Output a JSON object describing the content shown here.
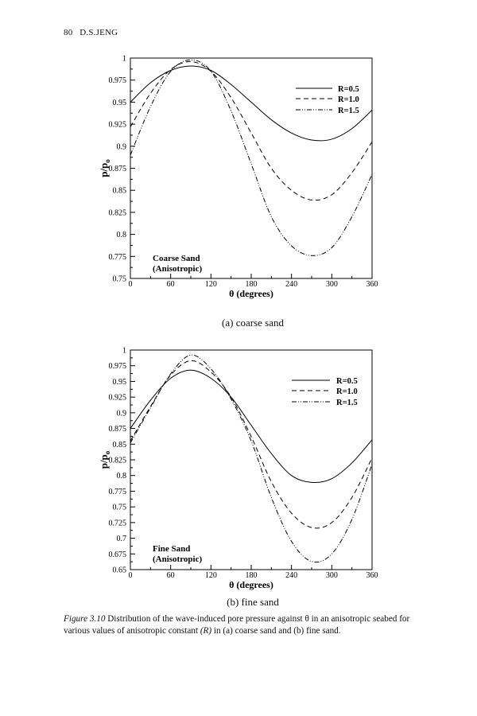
{
  "header": {
    "page_number": "80",
    "author": "D.S.JENG"
  },
  "chart_data": [
    {
      "type": "line",
      "subcaption": "(a) coarse sand",
      "annotation": [
        "Coarse Sand",
        "(Anisotropic)"
      ],
      "xlabel": "θ (degrees)",
      "ylabel": "p/p",
      "ylabel_sub": "o",
      "xlim": [
        0,
        360
      ],
      "ylim": [
        0.75,
        1
      ],
      "xticks": [
        0,
        60,
        120,
        180,
        240,
        300,
        360
      ],
      "xtick_labels": [
        "0",
        "60",
        "120",
        "180",
        "240",
        "300",
        "360"
      ],
      "yticks": [
        0.75,
        0.775,
        0.8,
        0.825,
        0.85,
        0.875,
        0.9,
        0.925,
        0.95,
        0.975,
        1
      ],
      "ytick_labels": [
        "0.75",
        "0.775",
        "0.8",
        "0.825",
        "0.85",
        "0.875",
        "0.9",
        "0.925",
        "0.95",
        "0.975",
        "1"
      ],
      "legend_position": "top-right",
      "x": [
        0,
        30,
        60,
        90,
        120,
        150,
        180,
        210,
        240,
        270,
        300,
        330,
        360
      ],
      "series": [
        {
          "name": "R=0.5",
          "style": "solid",
          "values": [
            0.95,
            0.972,
            0.986,
            0.991,
            0.986,
            0.97,
            0.95,
            0.93,
            0.915,
            0.907,
            0.908,
            0.92,
            0.941
          ]
        },
        {
          "name": "R=1.0",
          "style": "dashed",
          "values": [
            0.922,
            0.96,
            0.987,
            0.996,
            0.985,
            0.955,
            0.915,
            0.875,
            0.85,
            0.839,
            0.845,
            0.87,
            0.905
          ]
        },
        {
          "name": "R=1.5",
          "style": "dash-dot-dot",
          "values": [
            0.89,
            0.945,
            0.985,
            0.998,
            0.985,
            0.94,
            0.88,
            0.82,
            0.787,
            0.776,
            0.785,
            0.82,
            0.868
          ]
        }
      ]
    },
    {
      "type": "line",
      "subcaption": "(b) fine sand",
      "annotation": [
        "Fine Sand",
        "(Anisotropic)"
      ],
      "xlabel": "θ (degrees)",
      "ylabel": "p/p",
      "ylabel_sub": "o",
      "xlim": [
        0,
        360
      ],
      "ylim": [
        0.65,
        1
      ],
      "xticks": [
        0,
        60,
        120,
        180,
        240,
        300,
        360
      ],
      "xtick_labels": [
        "0",
        "60",
        "120",
        "180",
        "240",
        "300",
        "360"
      ],
      "yticks": [
        0.65,
        0.675,
        0.7,
        0.725,
        0.75,
        0.775,
        0.8,
        0.825,
        0.85,
        0.875,
        0.9,
        0.925,
        0.95,
        0.975,
        1
      ],
      "ytick_labels": [
        "0.65",
        "0.675",
        "0.7",
        "0.725",
        "0.75",
        "0.775",
        "0.8",
        "0.825",
        "0.85",
        "0.875",
        "0.9",
        "0.925",
        "0.95",
        "0.975",
        "1"
      ],
      "legend_position": "top-right",
      "x": [
        0,
        30,
        60,
        90,
        120,
        150,
        180,
        210,
        240,
        270,
        300,
        330,
        360
      ],
      "series": [
        {
          "name": "R=0.5",
          "style": "solid",
          "values": [
            0.875,
            0.92,
            0.955,
            0.968,
            0.955,
            0.925,
            0.88,
            0.835,
            0.8,
            0.789,
            0.795,
            0.82,
            0.857
          ]
        },
        {
          "name": "R=1.0",
          "style": "dashed",
          "values": [
            0.855,
            0.91,
            0.96,
            0.983,
            0.965,
            0.925,
            0.862,
            0.79,
            0.74,
            0.717,
            0.725,
            0.765,
            0.828
          ]
        },
        {
          "name": "R=1.5",
          "style": "dash-dot-dot",
          "values": [
            0.852,
            0.908,
            0.962,
            0.992,
            0.97,
            0.922,
            0.855,
            0.765,
            0.695,
            0.663,
            0.675,
            0.73,
            0.818
          ]
        }
      ]
    }
  ],
  "caption": {
    "label": "Figure 3.10",
    "text_1": " Distribution of the wave-induced pore pressure against θ in an anisotropic seabed for various values of anisotropic constant ",
    "r_symbol": "(R)",
    "text_2": " in (a) coarse sand and (b) fine sand."
  }
}
